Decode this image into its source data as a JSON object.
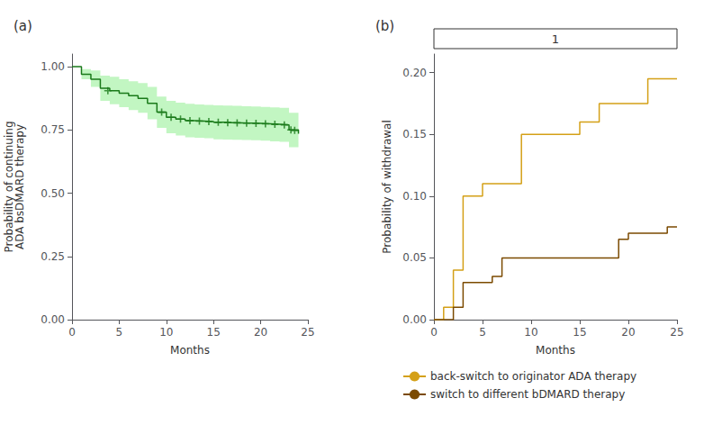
{
  "chart_data": [
    {
      "type": "line",
      "title": "(a)",
      "xlabel": "Months",
      "ylabel": "Probability of continuing\nADA bsDMARD therapy",
      "xlim": [
        0,
        25
      ],
      "ylim": [
        0.0,
        1.05
      ],
      "xticks": [
        0,
        5,
        10,
        15,
        20,
        25
      ],
      "yticks": [
        {
          "value": 0.0,
          "label": "0.00"
        },
        0.25,
        {
          "value": 0.5,
          "label": "0.50"
        },
        0.75,
        {
          "value": 1.0,
          "label": "1.00"
        }
      ],
      "grid": false,
      "x": [
        0,
        1,
        2,
        3,
        4,
        5,
        6,
        7,
        8,
        9,
        10,
        11,
        12,
        13,
        14,
        15,
        16,
        17,
        18,
        19,
        20,
        21,
        22,
        23,
        24
      ],
      "series": [
        {
          "type": "band",
          "color": "#90ee90",
          "lower": [
            1.0,
            0.95,
            0.92,
            0.865,
            0.852,
            0.84,
            0.828,
            0.818,
            0.792,
            0.758,
            0.737,
            0.728,
            0.721,
            0.719,
            0.717,
            0.713,
            0.712,
            0.711,
            0.71,
            0.709,
            0.707,
            0.705,
            0.703,
            0.682,
            0.665
          ],
          "upper": [
            1.0,
            0.99,
            0.985,
            0.965,
            0.96,
            0.95,
            0.942,
            0.935,
            0.92,
            0.882,
            0.865,
            0.858,
            0.853,
            0.851,
            0.849,
            0.847,
            0.846,
            0.845,
            0.844,
            0.843,
            0.841,
            0.839,
            0.837,
            0.818,
            0.81
          ]
        },
        {
          "type": "line",
          "line_style": "step",
          "color": "#1a7a1a",
          "values": [
            1.0,
            0.97,
            0.95,
            0.915,
            0.905,
            0.895,
            0.885,
            0.875,
            0.855,
            0.82,
            0.8,
            0.793,
            0.787,
            0.785,
            0.783,
            0.78,
            0.779,
            0.778,
            0.777,
            0.776,
            0.774,
            0.772,
            0.77,
            0.75,
            0.735
          ]
        },
        {
          "type": "scatter",
          "marker": "plus",
          "color": "#1a7a1a",
          "x": [
            3.8,
            9.5,
            10.5,
            11.5,
            12.5,
            13.5,
            14.5,
            15.5,
            16.5,
            17.5,
            18.5,
            19.5,
            20.5,
            21.5,
            22.5,
            23.2,
            23.6
          ],
          "values": [
            0.905,
            0.82,
            0.8,
            0.793,
            0.787,
            0.785,
            0.783,
            0.78,
            0.779,
            0.778,
            0.777,
            0.776,
            0.774,
            0.772,
            0.77,
            0.75,
            0.748
          ]
        }
      ]
    },
    {
      "type": "line",
      "title": "(b)",
      "xlabel": "Months",
      "ylabel": "Probability of withdrawal",
      "xlim": [
        0,
        25
      ],
      "ylim": [
        0.0,
        0.215
      ],
      "xticks": [
        0,
        5,
        10,
        15,
        20,
        25
      ],
      "yticks": [
        {
          "value": 0.0,
          "label": "0.00"
        },
        0.05,
        {
          "value": 0.1,
          "label": "0.10"
        },
        0.15,
        {
          "value": 0.2,
          "label": "0.20"
        }
      ],
      "grid": false,
      "annotations": [
        "1"
      ],
      "legend": "bottom",
      "series": [
        {
          "name": "back-switch to originator ADA therapy",
          "type": "line",
          "line_style": "step",
          "color": "#D4A017",
          "x": [
            0,
            1,
            1,
            2,
            2,
            3,
            3,
            5,
            5,
            9,
            9,
            10,
            10,
            15,
            15,
            17,
            17,
            19,
            19,
            22,
            22,
            25
          ],
          "values": [
            0,
            0,
            0.01,
            0.01,
            0.04,
            0.04,
            0.1,
            0.1,
            0.11,
            0.11,
            0.15,
            0.15,
            0.15,
            0.15,
            0.16,
            0.16,
            0.175,
            0.175,
            0.175,
            0.175,
            0.195,
            0.195
          ]
        },
        {
          "name": "switch to different bDMARD therapy",
          "type": "line",
          "line_style": "step",
          "color": "#7B4A00",
          "x": [
            0,
            2,
            2,
            3,
            3,
            6,
            6,
            7,
            7,
            9,
            9,
            19,
            19,
            20,
            20,
            24,
            24,
            25
          ],
          "values": [
            0,
            0,
            0.01,
            0.01,
            0.03,
            0.03,
            0.035,
            0.035,
            0.05,
            0.05,
            0.05,
            0.05,
            0.065,
            0.065,
            0.07,
            0.07,
            0.075,
            0.075
          ]
        }
      ]
    }
  ]
}
